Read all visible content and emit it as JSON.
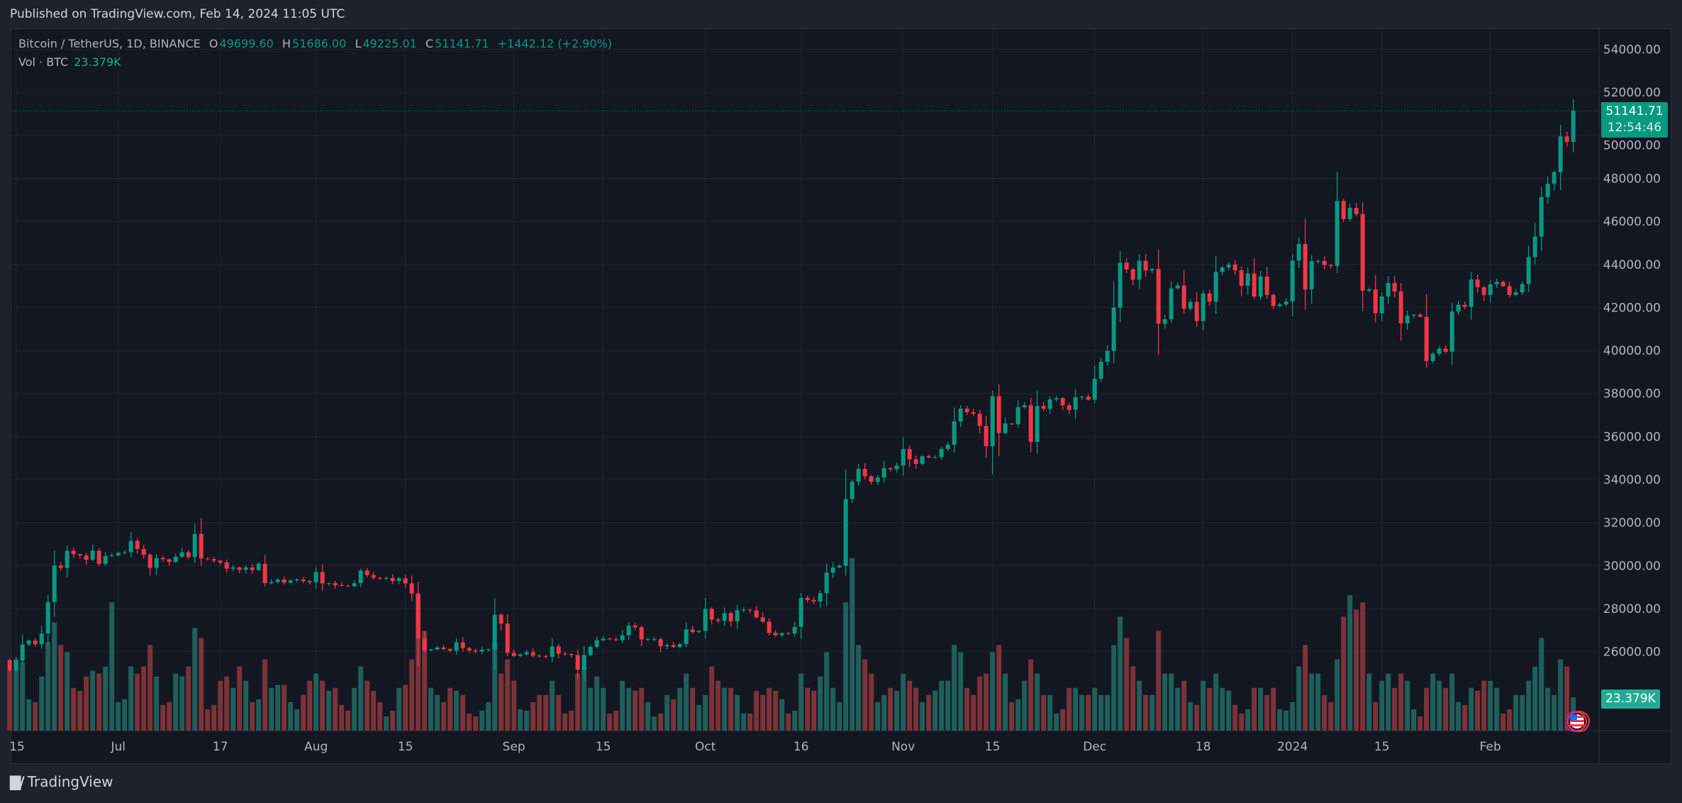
{
  "published": "Published on TradingView.com, Feb 14, 2024 11:05 UTC",
  "legend": {
    "symbol": "Bitcoin / TetherUS, 1D, BINANCE",
    "o_label": "O",
    "o": "49699.60",
    "h_label": "H",
    "h": "51686.00",
    "l_label": "L",
    "l": "49225.01",
    "c_label": "C",
    "c": "51141.71",
    "change": "+1442.12 (+2.90%)",
    "vol_label": "Vol · BTC",
    "vol": "23.379K"
  },
  "last_price": {
    "price": "51141.71",
    "countdown": "12:54:46"
  },
  "volume_label": "23.379K",
  "footer": {
    "brand": "TradingView",
    "logo_text": "17"
  },
  "colors": {
    "up": "#089981",
    "down": "#f23645",
    "vol_up": "#1f5f5b",
    "vol_down": "#7b3338",
    "background": "#131722"
  },
  "chart_data": {
    "type": "candlestick",
    "ylim": [
      24000,
      55000
    ],
    "price_ticks": [
      "26000.00",
      "28000.00",
      "30000.00",
      "32000.00",
      "34000.00",
      "36000.00",
      "38000.00",
      "40000.00",
      "42000.00",
      "44000.00",
      "46000.00",
      "48000.00",
      "50000.00",
      "52000.00",
      "54000.00"
    ],
    "time_ticks": [
      {
        "label": "15",
        "date": "2023-06-15"
      },
      {
        "label": "Jul",
        "date": "2023-07-01"
      },
      {
        "label": "17",
        "date": "2023-07-17"
      },
      {
        "label": "Aug",
        "date": "2023-08-01"
      },
      {
        "label": "15",
        "date": "2023-08-15"
      },
      {
        "label": "Sep",
        "date": "2023-09-01"
      },
      {
        "label": "15",
        "date": "2023-09-15"
      },
      {
        "label": "Oct",
        "date": "2023-10-01"
      },
      {
        "label": "16",
        "date": "2023-10-16"
      },
      {
        "label": "Nov",
        "date": "2023-11-01"
      },
      {
        "label": "15",
        "date": "2023-11-15"
      },
      {
        "label": "Dec",
        "date": "2023-12-01"
      },
      {
        "label": "18",
        "date": "2023-12-18"
      },
      {
        "label": "2024",
        "date": "2024-01-01"
      },
      {
        "label": "15",
        "date": "2024-01-15"
      },
      {
        "label": "Feb",
        "date": "2024-02-01"
      }
    ],
    "volume_unit": "K BTC",
    "last_candle": {
      "date": "2024-02-14",
      "open": 49699.6,
      "high": 51686.0,
      "low": 49225.01,
      "close": 51141.71,
      "volume": 23.379
    },
    "months": [
      {
        "month": "2023-06",
        "first_day": 14,
        "close": [
          25120,
          25575,
          26330,
          26510,
          26340,
          26840,
          28310,
          30000,
          29890,
          30690,
          30530,
          30470,
          30270,
          30690,
          30080,
          30440,
          30470
        ],
        "volume": [
          42,
          50,
          48,
          22,
          20,
          38,
          62,
          76,
          60,
          55,
          30,
          28,
          38,
          42,
          40,
          45,
          90
        ]
      },
      {
        "month": "2023-07",
        "first_day": 1,
        "close": [
          30590,
          30620,
          31150,
          30770,
          30500,
          29890,
          30350,
          30290,
          30170,
          30410,
          30620,
          30390,
          31470,
          30330,
          30300,
          30230,
          30140,
          29860,
          29910,
          29800,
          29910,
          29790,
          30080,
          29180,
          29230,
          29350,
          29210,
          29310,
          29350,
          29280,
          29230
        ],
        "volume": [
          20,
          22,
          45,
          40,
          45,
          60,
          38,
          18,
          20,
          40,
          38,
          45,
          72,
          65,
          15,
          18,
          35,
          38,
          30,
          45,
          35,
          20,
          22,
          50,
          30,
          32,
          32,
          20,
          15,
          25,
          35
        ]
      },
      {
        "month": "2023-08",
        "first_day": 1,
        "close": [
          29700,
          29170,
          29180,
          29090,
          29060,
          29040,
          29180,
          29770,
          29560,
          29430,
          29400,
          29420,
          29280,
          29410,
          29170,
          28700,
          26620,
          26050,
          26100,
          26190,
          26120,
          26040,
          26430,
          26160,
          26050,
          26010,
          26090,
          26110,
          27720,
          27300,
          25940
        ],
        "volume": [
          40,
          35,
          28,
          30,
          18,
          14,
          30,
          45,
          35,
          28,
          20,
          10,
          14,
          30,
          32,
          50,
          95,
          70,
          30,
          25,
          20,
          30,
          28,
          25,
          12,
          10,
          14,
          20,
          62,
          40,
          50
        ]
      },
      {
        "month": "2023-09",
        "first_day": 1,
        "close": [
          25800,
          25870,
          25970,
          25810,
          25780,
          25750,
          26240,
          25900,
          25890,
          25840,
          25160,
          25840,
          26220,
          26530,
          26600,
          26570,
          26530,
          26760,
          27210,
          27130,
          26570,
          26580,
          26580,
          26250,
          26300,
          26210,
          26350,
          27030,
          26910,
          26960
        ],
        "volume": [
          35,
          15,
          14,
          20,
          25,
          25,
          35,
          25,
          12,
          14,
          40,
          45,
          30,
          38,
          30,
          12,
          14,
          35,
          30,
          28,
          30,
          20,
          10,
          12,
          25,
          22,
          30,
          40,
          30,
          18
        ]
      },
      {
        "month": "2023-10",
        "first_day": 1,
        "close": [
          27990,
          27490,
          27430,
          27790,
          27410,
          27930,
          27950,
          27920,
          27590,
          27390,
          26870,
          26760,
          26860,
          26850,
          27150,
          28500,
          28400,
          28330,
          28720,
          29670,
          29910,
          29990,
          33090,
          33900,
          34500,
          34150,
          33890,
          34090,
          34530,
          34480,
          34650
        ],
        "volume": [
          25,
          45,
          35,
          30,
          30,
          25,
          12,
          12,
          28,
          25,
          30,
          28,
          22,
          12,
          14,
          40,
          30,
          28,
          38,
          55,
          30,
          20,
          90,
          121,
          60,
          50,
          40,
          20,
          25,
          30,
          28
        ]
      },
      {
        "month": "2023-11",
        "first_day": 1,
        "close": [
          35420,
          34940,
          34730,
          35080,
          35020,
          35040,
          35420,
          35620,
          36700,
          37300,
          37130,
          37060,
          36490,
          35550,
          37880,
          36160,
          36600,
          36570,
          37360,
          37450,
          35750,
          37420,
          37290,
          37720,
          37780,
          37450,
          37240,
          37830,
          37850,
          37710
        ],
        "volume": [
          40,
          35,
          30,
          20,
          25,
          28,
          35,
          35,
          60,
          55,
          30,
          25,
          38,
          40,
          55,
          60,
          40,
          20,
          22,
          35,
          50,
          40,
          25,
          25,
          12,
          15,
          30,
          30,
          25,
          25
        ]
      },
      {
        "month": "2023-12",
        "first_day": 1,
        "close": [
          38690,
          39470,
          39980,
          41990,
          44080,
          43770,
          43290,
          44170,
          43720,
          43790,
          41240,
          41450,
          42890,
          43020,
          41940,
          42260,
          41370,
          42660,
          42270,
          43650,
          43860,
          43990,
          43730,
          43010,
          43580,
          42510,
          43440,
          42580,
          42070,
          42140,
          42280
        ],
        "volume": [
          30,
          25,
          25,
          60,
          80,
          65,
          45,
          35,
          25,
          25,
          70,
          40,
          40,
          30,
          35,
          20,
          18,
          35,
          30,
          40,
          30,
          28,
          18,
          12,
          15,
          30,
          30,
          25,
          30,
          15,
          14
        ]
      },
      {
        "month": "2024-01",
        "first_day": 1,
        "close": [
          44180,
          44950,
          42840,
          44150,
          44160,
          43970,
          43930,
          46950,
          46110,
          46630,
          46340,
          42780,
          42840,
          41730,
          42510,
          43140,
          42740,
          41260,
          41620,
          41660,
          41570,
          39510,
          39850,
          40080,
          39940,
          41810,
          42120,
          42030,
          43300,
          42940,
          42580
        ],
        "volume": [
          20,
          45,
          60,
          40,
          40,
          25,
          20,
          50,
          80,
          95,
          85,
          90,
          40,
          20,
          35,
          40,
          30,
          40,
          35,
          15,
          10,
          30,
          40,
          35,
          30,
          40,
          20,
          18,
          30,
          28,
          35
        ]
      },
      {
        "month": "2024-02",
        "first_day": 1,
        "close": [
          43080,
          43190,
          42990,
          42580,
          42700,
          43090,
          44340,
          45290,
          47130,
          47750,
          48290,
          49960,
          49699.6,
          51141.71
        ],
        "volume": [
          35,
          30,
          12,
          15,
          25,
          25,
          35,
          45,
          65,
          30,
          25,
          50,
          45,
          23.379
        ]
      }
    ]
  }
}
